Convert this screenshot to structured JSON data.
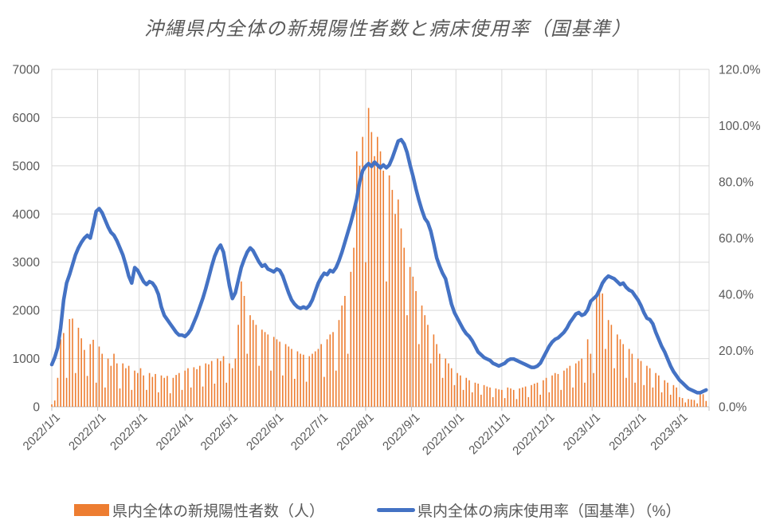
{
  "chart": {
    "title": "沖縄県内全体の新規陽性者数と病床使用率（国基準）",
    "colors": {
      "bar": "#ED7D31",
      "line": "#4472C4",
      "grid": "#D9D9D9",
      "axis_line": "#BFBFBF",
      "tick_text": "#595959",
      "background": "#FFFFFF"
    }
  },
  "legend": {
    "bar_label": "県内全体の新規陽性者数（人）",
    "line_label": "県内全体の病床使用率（国基準）（%）"
  },
  "chart_data": {
    "type": "combo",
    "title": "沖縄県内全体の新規陽性者数と病床使用率（国基準）",
    "subtype": [
      "bar",
      "line"
    ],
    "grid": true,
    "legend_position": "bottom",
    "x": {
      "unit": "date",
      "start": "2022/1/1",
      "end": "2023/3/19",
      "sample_interval_days": 2,
      "axis_total_days": 444,
      "tick_labels": [
        "2022/1/1",
        "2022/2/1",
        "2022/3/1",
        "2022/4/1",
        "2022/5/1",
        "2022/6/1",
        "2022/7/1",
        "2022/8/1",
        "2022/9/1",
        "2022/10/1",
        "2022/11/1",
        "2022/12/1",
        "2023/1/1",
        "2023/2/1",
        "2023/3/1"
      ],
      "tick_day_offsets": [
        0,
        31,
        59,
        90,
        120,
        151,
        181,
        212,
        243,
        273,
        304,
        334,
        365,
        396,
        424
      ]
    },
    "left_axis": {
      "min": 0,
      "max": 7000,
      "tick_step": 1000,
      "ticks": [
        "0",
        "1000",
        "2000",
        "3000",
        "4000",
        "5000",
        "6000",
        "7000"
      ]
    },
    "right_axis": {
      "min_pct": 0,
      "max_pct": 120,
      "tick_step_pct": 20,
      "ticks": [
        "0.0%",
        "20.0%",
        "40.0%",
        "60.0%",
        "80.0%",
        "100.0%",
        "120.0%"
      ]
    },
    "series": [
      {
        "name": "県内全体の新規陽性者数（人）",
        "type": "bar",
        "yaxis": "left",
        "color": "#ED7D31",
        "values": [
          50,
          130,
          600,
          1400,
          1530,
          600,
          1820,
          1830,
          700,
          1640,
          1420,
          1180,
          640,
          1300,
          1390,
          500,
          1250,
          1100,
          400,
          1000,
          850,
          1100,
          900,
          380,
          900,
          800,
          850,
          350,
          750,
          700,
          800,
          650,
          350,
          700,
          620,
          680,
          300,
          650,
          600,
          640,
          280,
          600,
          660,
          700,
          350,
          750,
          800,
          400,
          820,
          780,
          850,
          420,
          900,
          880,
          950,
          480,
          1000,
          950,
          1050,
          500,
          900,
          800,
          1000,
          1700,
          2600,
          2300,
          1100,
          1900,
          1800,
          1700,
          850,
          1600,
          1550,
          1500,
          750,
          1450,
          1400,
          1350,
          650,
          1300,
          1250,
          1200,
          580,
          1150,
          1100,
          1080,
          520,
          1050,
          1100,
          1150,
          1200,
          1300,
          620,
          1400,
          1500,
          1550,
          750,
          1800,
          2100,
          2300,
          1100,
          2800,
          3300,
          5300,
          5000,
          5600,
          3000,
          6200,
          5700,
          5200,
          5600,
          5300,
          4900,
          2600,
          4800,
          4500,
          4000,
          4300,
          3700,
          3300,
          1900,
          2900,
          2700,
          2400,
          1300,
          2100,
          1900,
          1700,
          900,
          1500,
          1300,
          1100,
          600,
          1000,
          900,
          800,
          450,
          700,
          650,
          350,
          600,
          550,
          300,
          500,
          480,
          250,
          450,
          420,
          400,
          200,
          380,
          360,
          350,
          180,
          400,
          380,
          350,
          160,
          380,
          400,
          420,
          200,
          450,
          480,
          500,
          250,
          550,
          600,
          300,
          650,
          700,
          680,
          350,
          750,
          800,
          850,
          400,
          900,
          950,
          1000,
          500,
          1400,
          1100,
          700,
          2300,
          2400,
          2350,
          1200,
          1800,
          1700,
          800,
          1500,
          1400,
          1300,
          600,
          1200,
          1100,
          500,
          1000,
          950,
          450,
          850,
          800,
          400,
          700,
          650,
          300,
          550,
          500,
          250,
          450,
          400,
          200,
          180,
          90,
          160,
          150,
          140,
          70,
          300,
          260,
          120
        ]
      },
      {
        "name": "県内全体の病床使用率（国基準）（%）",
        "type": "line",
        "yaxis": "right",
        "color": "#4472C4",
        "values_pct": [
          15,
          17.5,
          21,
          28,
          38,
          44,
          47,
          50.5,
          54,
          56.5,
          58.5,
          60,
          61,
          60,
          64.5,
          69.5,
          70.5,
          69,
          66.5,
          64,
          62,
          61,
          59,
          56.5,
          54,
          50.5,
          46.5,
          44,
          49.5,
          48.5,
          46.5,
          44.5,
          43.5,
          44.5,
          44,
          42.5,
          40,
          35.5,
          32.5,
          31,
          29.5,
          28,
          26.5,
          25.5,
          25.5,
          25,
          26,
          27.5,
          30,
          32.5,
          35.5,
          38.5,
          42,
          46,
          50,
          53.5,
          56,
          57.5,
          55,
          49,
          43,
          38.5,
          40.5,
          45,
          49.5,
          52.5,
          55,
          56.5,
          55.5,
          53.5,
          51.5,
          50,
          50.5,
          49,
          48.5,
          48,
          49,
          48.5,
          46.5,
          43.5,
          40.5,
          38,
          36.5,
          35.5,
          35,
          35.5,
          35,
          36,
          38,
          41,
          44,
          46,
          47.5,
          47,
          48.5,
          48,
          49.5,
          52,
          55,
          58.5,
          62,
          65.5,
          69.5,
          74,
          80,
          84,
          85.5,
          86.5,
          85.5,
          87,
          86,
          85,
          86,
          85,
          86,
          88.5,
          91.5,
          94.5,
          95,
          93.5,
          90.5,
          86,
          82,
          77.5,
          73.5,
          70,
          67,
          65.5,
          62.5,
          58,
          53,
          50,
          47.5,
          45.5,
          41,
          36.5,
          33.5,
          31.5,
          29.5,
          27.5,
          26,
          25,
          23.5,
          21.5,
          19.5,
          18.5,
          17.5,
          17,
          16.5,
          15.5,
          15,
          14.5,
          15,
          15.5,
          16.5,
          17,
          17,
          16.5,
          16,
          15.5,
          15,
          14.5,
          14,
          14,
          14.5,
          15.5,
          17.5,
          19.5,
          21.5,
          23,
          24,
          24.5,
          25.5,
          26.5,
          28,
          30,
          31.5,
          33,
          33.5,
          32.5,
          33,
          34.5,
          37.5,
          38.5,
          39.5,
          41.5,
          44,
          45.5,
          46.5,
          46,
          45.5,
          44.5,
          43.5,
          44,
          42.5,
          41.5,
          41,
          39.5,
          38,
          36,
          33.5,
          31.5,
          31,
          29.5,
          26.5,
          24,
          21.5,
          19.5,
          17,
          14.5,
          12.5,
          11,
          9.5,
          8.5,
          7.5,
          6.5,
          6,
          5.5,
          5,
          5,
          5.5,
          6
        ]
      }
    ]
  }
}
